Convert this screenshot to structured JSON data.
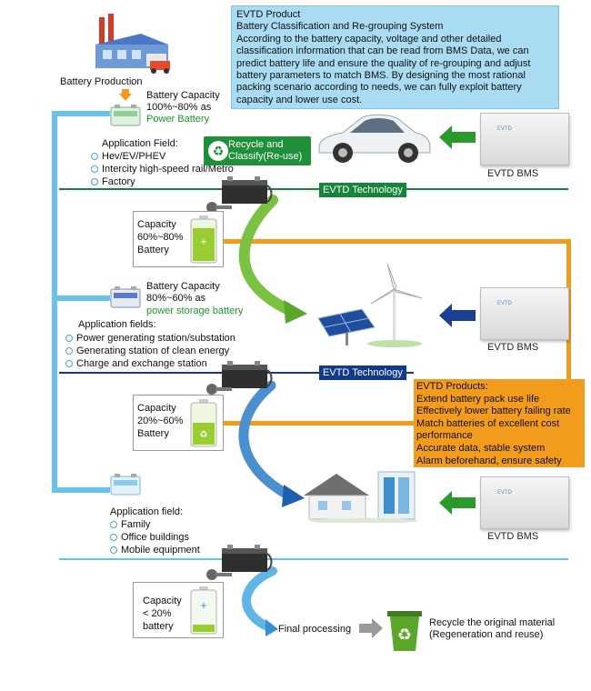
{
  "battery_production_label": "Battery Production",
  "info_box": {
    "title": "EVTD Product",
    "subtitle": "Battery Classification and Re-grouping System",
    "body": "According to the battery capacity, voltage and other detailed classification information that can be read from BMS Data, we can predict battery life and ensure the quality of re-grouping and adjust battery parameters to match BMS. By designing the most rational packing scenario according to needs, we can fully exploit battery capacity and lower use cost."
  },
  "stage1": {
    "label_line1": "Battery Capacity",
    "label_line2": "100%~80% as",
    "label_line3": "Power Battery",
    "app_title": "Application Field:",
    "app_items": [
      "Hev/EV/PHEV",
      "Intercity high-speed rail/Metro",
      "Factory"
    ]
  },
  "recycle_badge": "Recycle and Classify(Re-use)",
  "tech1": "EVTD Technology",
  "cap1": {
    "line1": "Capacity",
    "line2": "60%~80%",
    "line3": "Battery"
  },
  "stage2": {
    "label_line1": "Battery Capacity",
    "label_line2": "80%~60% as",
    "label_line3": "power storage battery",
    "app_title": "Application fields:",
    "app_items": [
      "Power generating station/substation",
      "Generating station of clean energy",
      "Charge and exchange station"
    ]
  },
  "tech2": "EVTD Technology",
  "products_box": {
    "title": "EVTD Products:",
    "items": [
      "Extend battery pack use life",
      "Effectively lower battery failing rate",
      "Match batteries of excellent cost performance",
      "Accurate data, stable system",
      "Alarm beforehand, ensure safety"
    ]
  },
  "cap2": {
    "line1": "Capacity",
    "line2": "20%~60%",
    "line3": "Battery"
  },
  "stage3": {
    "app_title": "Application field:",
    "app_items": [
      "Family",
      "Office buildings",
      "Mobile equipment"
    ]
  },
  "cap3": {
    "line1": "Capacity",
    "line2": "< 20%",
    "line3": "battery"
  },
  "final_processing": "Final processing",
  "recycle_material": {
    "line1": "Recycle the original material",
    "line2": "(Regeneration and reuse)"
  },
  "bms_label_1": "EVTD BMS",
  "bms_label_2": "EVTD BMS",
  "bms_label_3": "EVTD BMS",
  "colors": {
    "blue_line": "#66c3ea",
    "green": "#16853a",
    "navy": "#123a8c",
    "orange": "#f39b1c"
  }
}
